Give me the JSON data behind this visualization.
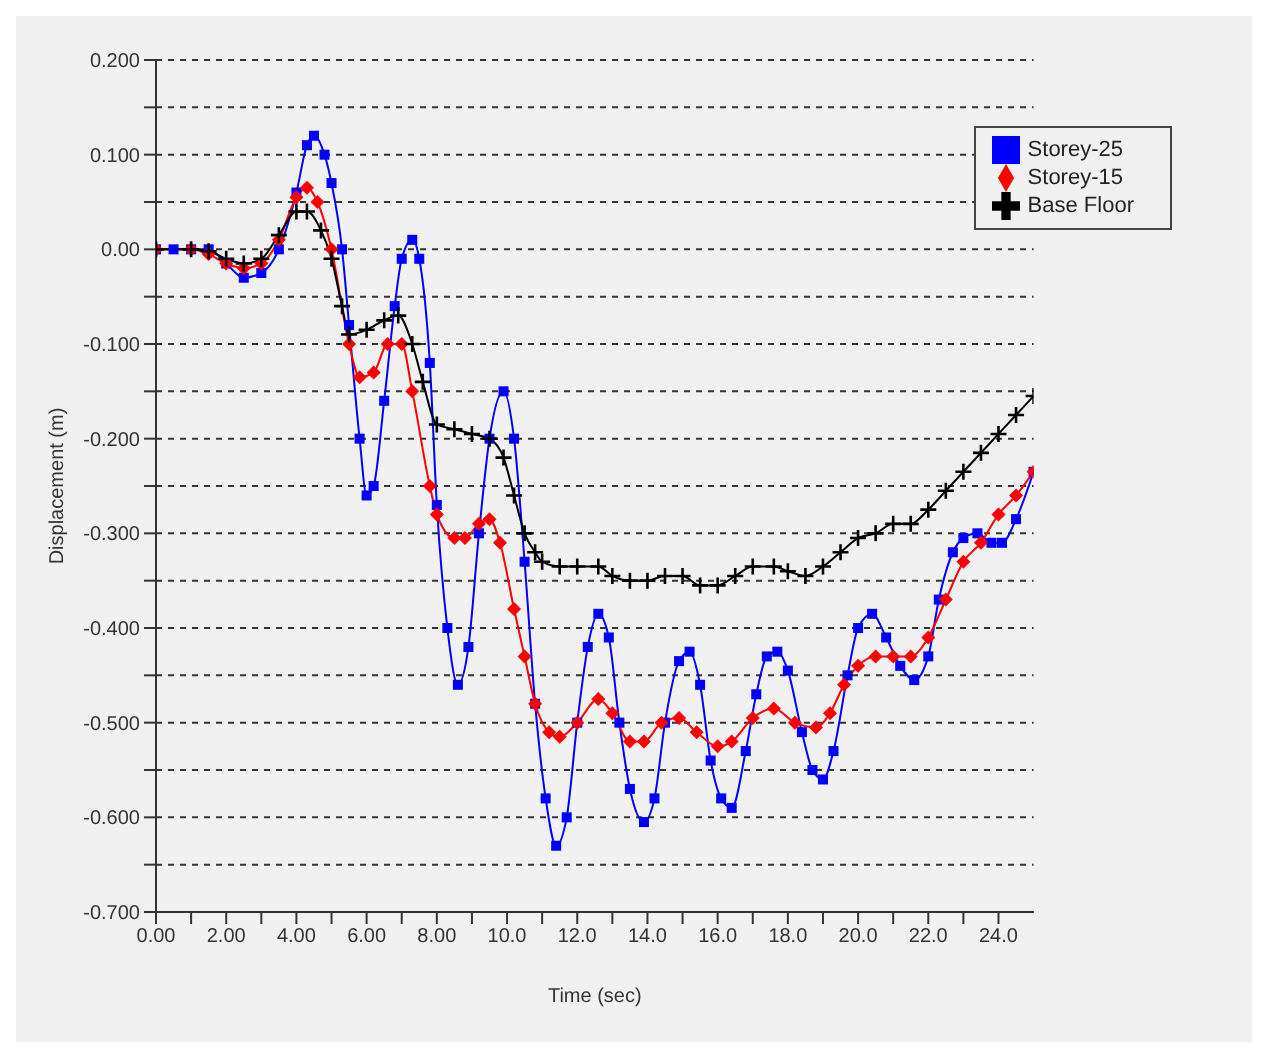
{
  "chart_data": {
    "type": "line",
    "xlabel": "Time (sec)",
    "ylabel": "Displacement (m)",
    "xlim": [
      0,
      25
    ],
    "xticks": [
      {
        "value": 0,
        "label": "0.00"
      },
      {
        "value": 1,
        "label": null
      },
      {
        "value": 2,
        "label": "2.00"
      },
      {
        "value": 3,
        "label": null
      },
      {
        "value": 4,
        "label": "4.00"
      },
      {
        "value": 5,
        "label": null
      },
      {
        "value": 6,
        "label": "6.00"
      },
      {
        "value": 7,
        "label": null
      },
      {
        "value": 8,
        "label": "8.00"
      },
      {
        "value": 9,
        "label": null
      },
      {
        "value": 10,
        "label": "10.0"
      },
      {
        "value": 11,
        "label": null
      },
      {
        "value": 12,
        "label": "12.0"
      },
      {
        "value": 13,
        "label": null
      },
      {
        "value": 14,
        "label": "14.0"
      },
      {
        "value": 15,
        "label": null
      },
      {
        "value": 16,
        "label": "16.0"
      },
      {
        "value": 17,
        "label": null
      },
      {
        "value": 18,
        "label": "18.0"
      },
      {
        "value": 19,
        "label": null
      },
      {
        "value": 20,
        "label": "20.0"
      },
      {
        "value": 21,
        "label": null
      },
      {
        "value": 22,
        "label": "22.0"
      },
      {
        "value": 23,
        "label": null
      },
      {
        "value": 24,
        "label": "24.0"
      }
    ],
    "ylim": [
      -0.7,
      0.2
    ],
    "yticks": [
      {
        "value": -0.7,
        "label": "-0.700"
      },
      {
        "value": -0.65,
        "label": null
      },
      {
        "value": -0.6,
        "label": "-0.600"
      },
      {
        "value": -0.55,
        "label": null
      },
      {
        "value": -0.5,
        "label": "-0.500"
      },
      {
        "value": -0.45,
        "label": null
      },
      {
        "value": -0.4,
        "label": "-0.400"
      },
      {
        "value": -0.35,
        "label": null
      },
      {
        "value": -0.3,
        "label": "-0.300"
      },
      {
        "value": -0.25,
        "label": null
      },
      {
        "value": -0.2,
        "label": "-0.200"
      },
      {
        "value": -0.15,
        "label": null
      },
      {
        "value": -0.1,
        "label": "-0.100"
      },
      {
        "value": -0.05,
        "label": null
      },
      {
        "value": 0,
        "label": "0.00"
      },
      {
        "value": 0.05,
        "label": null
      },
      {
        "value": 0.1,
        "label": "0.100"
      },
      {
        "value": 0.15,
        "label": null
      },
      {
        "value": 0.2,
        "label": "0.200"
      }
    ],
    "grid": "y",
    "legend": "top right",
    "line_style": "solid",
    "series": [
      {
        "name": "Storey-25",
        "color": "#0000ff",
        "marker": "square",
        "x": [
          0,
          0.5,
          1,
          1.5,
          2,
          2.5,
          3,
          3.5,
          4,
          4.3,
          4.5,
          4.8,
          5,
          5.3,
          5.5,
          5.8,
          6,
          6.2,
          6.5,
          6.8,
          7,
          7.3,
          7.5,
          7.8,
          8,
          8.3,
          8.6,
          8.9,
          9.2,
          9.5,
          9.9,
          10.2,
          10.5,
          10.8,
          11.1,
          11.4,
          11.7,
          12,
          12.3,
          12.6,
          12.9,
          13.2,
          13.5,
          13.9,
          14.2,
          14.5,
          14.9,
          15.2,
          15.5,
          15.8,
          16.1,
          16.4,
          16.8,
          17.1,
          17.4,
          17.7,
          18,
          18.4,
          18.7,
          19,
          19.3,
          19.7,
          20,
          20.4,
          20.8,
          21.2,
          21.6,
          22,
          22.3,
          22.7,
          23,
          23.4,
          23.8,
          24.1,
          24.5,
          25
        ],
        "values": [
          0,
          0,
          0,
          0,
          -0.015,
          -0.03,
          -0.025,
          0,
          0.06,
          0.11,
          0.12,
          0.1,
          0.07,
          0,
          -0.08,
          -0.2,
          -0.26,
          -0.25,
          -0.16,
          -0.06,
          -0.01,
          0.01,
          -0.01,
          -0.12,
          -0.27,
          -0.4,
          -0.46,
          -0.42,
          -0.3,
          -0.2,
          -0.15,
          -0.2,
          -0.33,
          -0.48,
          -0.58,
          -0.63,
          -0.6,
          -0.5,
          -0.42,
          -0.385,
          -0.41,
          -0.5,
          -0.57,
          -0.605,
          -0.58,
          -0.5,
          -0.435,
          -0.425,
          -0.46,
          -0.54,
          -0.58,
          -0.59,
          -0.53,
          -0.47,
          -0.43,
          -0.425,
          -0.445,
          -0.51,
          -0.55,
          -0.56,
          -0.53,
          -0.45,
          -0.4,
          -0.385,
          -0.41,
          -0.44,
          -0.455,
          -0.43,
          -0.37,
          -0.32,
          -0.305,
          -0.3,
          -0.31,
          -0.31,
          -0.285,
          -0.235
        ]
      },
      {
        "name": "Storey-15",
        "color": "#ff0000",
        "marker": "diamond",
        "x": [
          0,
          1,
          1.5,
          2,
          2.5,
          3,
          3.5,
          4,
          4.3,
          4.6,
          5,
          5.5,
          5.8,
          6.2,
          6.6,
          7,
          7.3,
          7.8,
          8,
          8.5,
          8.8,
          9.2,
          9.5,
          9.8,
          10.2,
          10.5,
          10.8,
          11.2,
          11.5,
          12,
          12.6,
          13,
          13.5,
          13.9,
          14.4,
          14.9,
          15.4,
          16,
          16.4,
          17,
          17.6,
          18.2,
          18.8,
          19.2,
          19.6,
          20,
          20.5,
          21,
          21.5,
          22,
          22.5,
          23,
          23.5,
          24,
          24.5,
          25
        ],
        "values": [
          0,
          0,
          -0.005,
          -0.015,
          -0.02,
          -0.015,
          0.01,
          0.055,
          0.065,
          0.05,
          0,
          -0.1,
          -0.135,
          -0.13,
          -0.1,
          -0.1,
          -0.15,
          -0.25,
          -0.28,
          -0.305,
          -0.305,
          -0.29,
          -0.285,
          -0.31,
          -0.38,
          -0.43,
          -0.48,
          -0.51,
          -0.515,
          -0.5,
          -0.475,
          -0.49,
          -0.52,
          -0.52,
          -0.5,
          -0.495,
          -0.51,
          -0.525,
          -0.52,
          -0.495,
          -0.485,
          -0.5,
          -0.505,
          -0.49,
          -0.46,
          -0.44,
          -0.43,
          -0.43,
          -0.43,
          -0.41,
          -0.37,
          -0.33,
          -0.31,
          -0.28,
          -0.26,
          -0.235
        ]
      },
      {
        "name": "Base Floor",
        "color": "#000000",
        "marker": "cross",
        "x": [
          0,
          1,
          1.5,
          2,
          2.5,
          3,
          3.5,
          4,
          4.3,
          4.7,
          5,
          5.3,
          5.5,
          6,
          6.5,
          6.9,
          7.3,
          7.6,
          8,
          8.5,
          9,
          9.5,
          9.9,
          10.2,
          10.5,
          10.8,
          11,
          11.5,
          12,
          12.6,
          13,
          13.5,
          14,
          14.5,
          15,
          15.5,
          16,
          16.5,
          17,
          17.6,
          18,
          18.5,
          19,
          19.5,
          20,
          20.5,
          21,
          21.5,
          22,
          22.5,
          23,
          23.5,
          24,
          24.5,
          25
        ],
        "values": [
          0,
          0,
          -0.002,
          -0.01,
          -0.015,
          -0.01,
          0.015,
          0.04,
          0.04,
          0.02,
          -0.01,
          -0.06,
          -0.09,
          -0.085,
          -0.075,
          -0.07,
          -0.1,
          -0.14,
          -0.185,
          -0.19,
          -0.195,
          -0.2,
          -0.22,
          -0.26,
          -0.3,
          -0.32,
          -0.33,
          -0.335,
          -0.335,
          -0.335,
          -0.345,
          -0.35,
          -0.35,
          -0.345,
          -0.345,
          -0.355,
          -0.355,
          -0.345,
          -0.335,
          -0.335,
          -0.34,
          -0.345,
          -0.335,
          -0.32,
          -0.305,
          -0.3,
          -0.29,
          -0.29,
          -0.275,
          -0.255,
          -0.235,
          -0.215,
          -0.195,
          -0.175,
          -0.155
        ]
      }
    ]
  }
}
